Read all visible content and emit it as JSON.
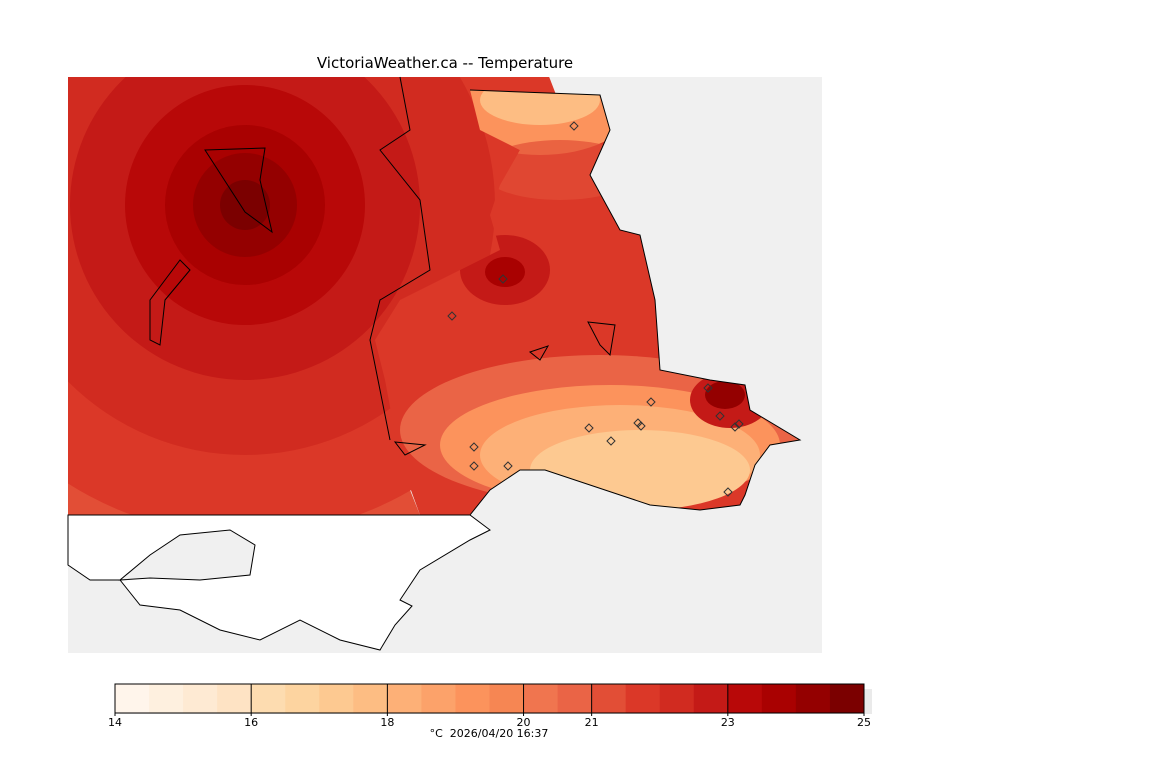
{
  "title": "VictoriaWeather.ca -- Temperature",
  "colorbar": {
    "min": 14,
    "max": 25,
    "tick_labels": [
      "14",
      "16",
      "18",
      "20",
      "21",
      "23",
      "25"
    ],
    "tick_values": [
      14,
      16,
      18,
      20,
      21,
      23,
      25
    ],
    "bin_edges": [
      14,
      14.5,
      15,
      15.5,
      16,
      16.5,
      17,
      17.5,
      18,
      18.5,
      19,
      19.5,
      20,
      20.5,
      21,
      21.5,
      22,
      22.5,
      23,
      23.5,
      24,
      24.5,
      25
    ],
    "colors": [
      "#fff5eb",
      "#fef0df",
      "#feead3",
      "#fee3c4",
      "#fddcb0",
      "#fdd4a0",
      "#fdc991",
      "#fdbd83",
      "#fdb077",
      "#fca26a",
      "#fc935c",
      "#f68653",
      "#f0754f",
      "#ea6446",
      "#e24e36",
      "#db3828",
      "#d12b20",
      "#c41a17",
      "#b80808",
      "#a90101",
      "#940000",
      "#7b0000"
    ]
  },
  "caption": {
    "unit": "°C",
    "timestamp": "2026/04/20 16:37"
  },
  "colors": {
    "water": "#f0f0f0",
    "land_outside": "#ffffff",
    "coast": "#000000"
  }
}
